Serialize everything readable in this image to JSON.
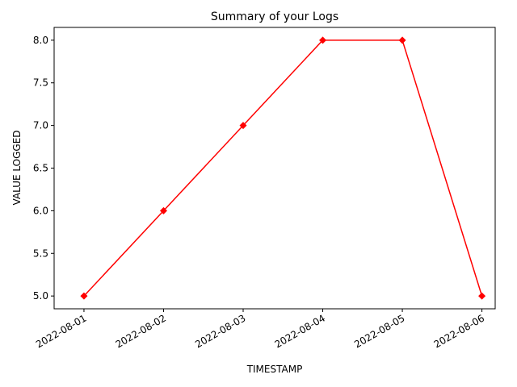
{
  "chart_data": {
    "type": "line",
    "title": "Summary of your Logs",
    "xlabel": "TIMESTAMP",
    "ylabel": "VALUE LOGGED",
    "x": [
      "2022-08-01",
      "2022-08-02",
      "2022-08-03",
      "2022-08-04",
      "2022-08-05",
      "2022-08-06"
    ],
    "series": [
      {
        "name": "VALUE LOGGED",
        "color": "#ff0000",
        "values": [
          5,
          6,
          7,
          8,
          8,
          5
        ]
      }
    ],
    "xlim": [
      "2022-07-31T15:00",
      "2022-08-06T04:00"
    ],
    "xticks": [
      "2022-08-01",
      "2022-08-02",
      "2022-08-03",
      "2022-08-04",
      "2022-08-05",
      "2022-08-06"
    ],
    "ylim": [
      4.85,
      8.15
    ],
    "yticks": [
      {
        "value": 5,
        "label": "5.0"
      },
      {
        "value": 5.5,
        "label": "5.5"
      },
      {
        "value": 6,
        "label": "6.0"
      },
      {
        "value": 6.5,
        "label": "6.5"
      },
      {
        "value": 7,
        "label": "7.0"
      },
      {
        "value": 7.5,
        "label": "7.5"
      },
      {
        "value": 8,
        "label": "8.0"
      }
    ],
    "grid": false,
    "marker": "diamond"
  }
}
